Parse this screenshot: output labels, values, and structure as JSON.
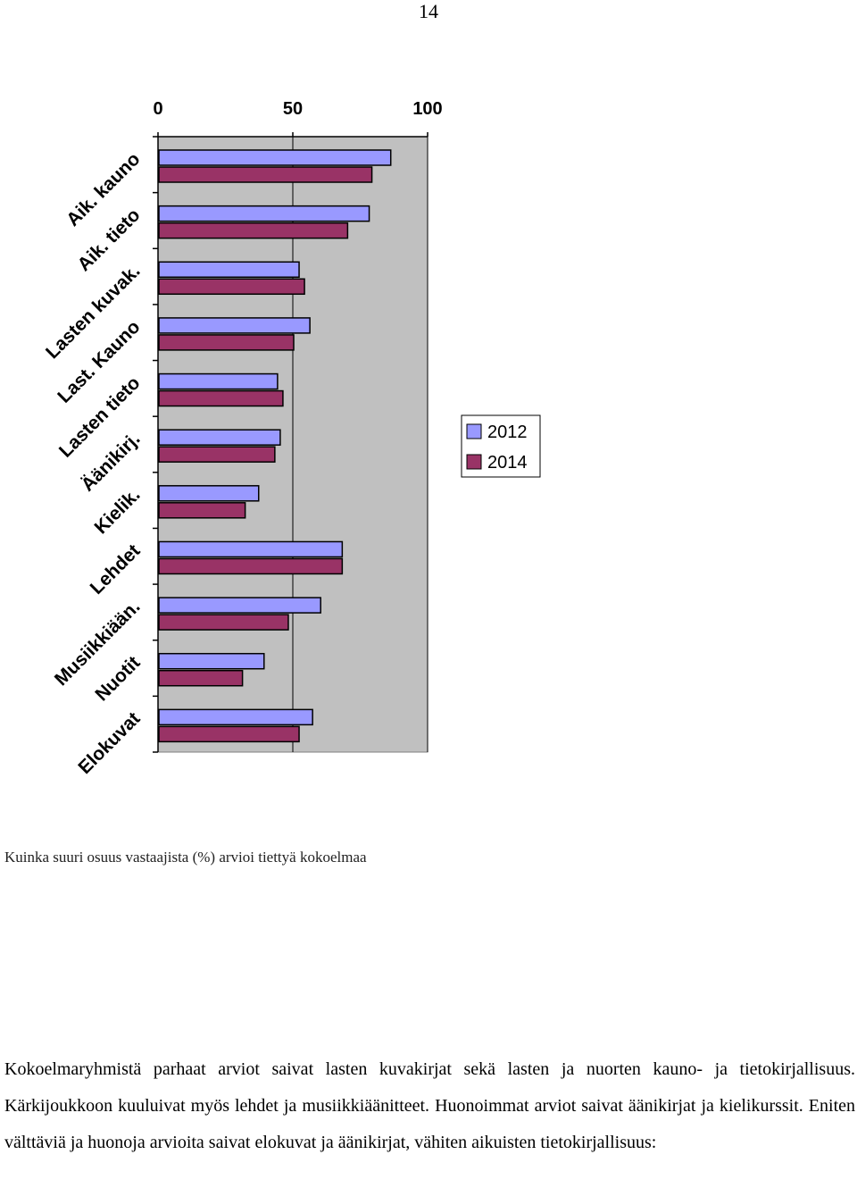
{
  "page": {
    "number": "14"
  },
  "chart_data": {
    "type": "bar",
    "orientation": "horizontal",
    "categories": [
      "Aik. kauno",
      "Aik. tieto",
      "Lasten kuvak.",
      "Last. Kauno",
      "Lasten tieto",
      "Äänikirj.",
      "Kielik.",
      "Lehdet",
      "Musiikkiään.",
      "Nuotit",
      "Elokuvat"
    ],
    "series": [
      {
        "name": "2012",
        "color": "#9999ff",
        "values": [
          86,
          78,
          52,
          56,
          44,
          45,
          37,
          68,
          60,
          39,
          57
        ]
      },
      {
        "name": "2014",
        "color": "#993366",
        "values": [
          79,
          70,
          54,
          50,
          46,
          43,
          32,
          68,
          48,
          31,
          52
        ]
      }
    ],
    "xlim": [
      0,
      100
    ],
    "xticks": [
      "0",
      "50",
      "100"
    ],
    "xaxis_position": "top",
    "plot_background": "#c0c0c0",
    "gridlines": "vertical",
    "legend": "right",
    "title": "",
    "xlabel": "",
    "ylabel": ""
  },
  "caption": "Kuinka suuri osuus vastaajista (%) arvioi tiettyä kokoelmaa",
  "paragraph": "Kokoelmaryhmistä parhaat arviot saivat lasten kuvakirjat sekä lasten ja nuorten kauno- ja tietokirjallisuus. Kärkijoukkoon kuuluivat myös lehdet ja musiikkiäänitteet. Huonoimmat arviot saivat äänikirjat ja kielikurssit. Eniten välttäviä ja huonoja arvioita saivat elokuvat ja äänikirjat, vähiten aikuisten tietokirjallisuus:"
}
